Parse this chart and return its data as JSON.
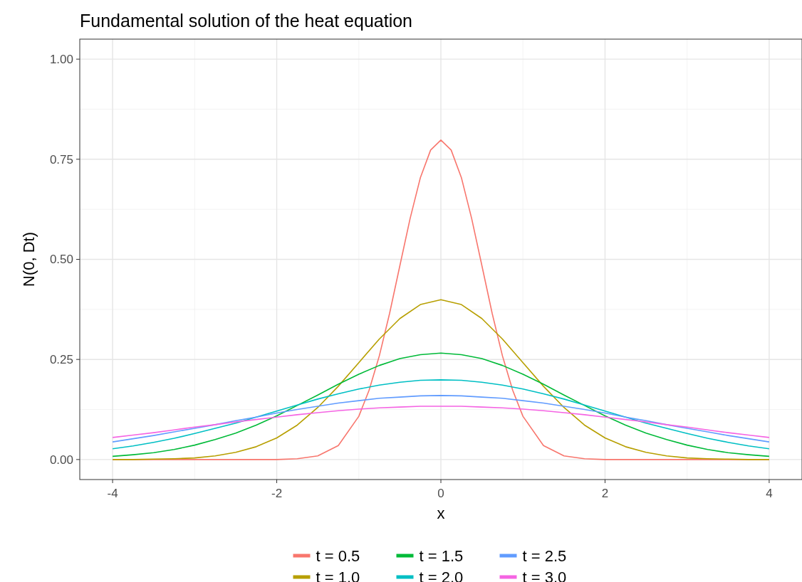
{
  "chart_data": {
    "type": "line",
    "title": "Fundamental solution of the heat equation",
    "xlabel": "x",
    "ylabel": "N(0, Dt)",
    "x": [
      -4,
      -3.75,
      -3.5,
      -3.25,
      -3,
      -2.75,
      -2.5,
      -2.25,
      -2,
      -1.75,
      -1.5,
      -1.25,
      -1,
      -0.75,
      -0.5,
      -0.25,
      0,
      0.25,
      0.5,
      0.75,
      1,
      1.25,
      1.5,
      1.75,
      2,
      2.25,
      2.5,
      2.75,
      3,
      3.25,
      3.5,
      3.75,
      4
    ],
    "xlim": [
      -4.4,
      4.4
    ],
    "xticks": [
      -4,
      -2,
      0,
      2,
      4
    ],
    "ylim": [
      -0.05,
      1.05
    ],
    "yticks": [
      {
        "value": 0,
        "label": "0.00"
      },
      {
        "value": 0.25,
        "label": "0.25"
      },
      {
        "value": 0.5,
        "label": "0.50"
      },
      {
        "value": 0.75,
        "label": "0.75"
      },
      {
        "value": 1,
        "label": "1.00"
      }
    ],
    "grid": true,
    "legend": "bottom",
    "line_style": "solid",
    "marker": "none",
    "series": [
      {
        "name": "t = 0.5",
        "color": "#f8766d",
        "x": [
          -4,
          -3,
          -2.5,
          -2,
          -1.75,
          -1.5,
          -1.25,
          -1,
          -0.875,
          -0.75,
          -0.625,
          -0.5,
          -0.375,
          -0.25,
          -0.125,
          0,
          0.125,
          0.25,
          0.375,
          0.5,
          0.625,
          0.75,
          0.875,
          1,
          1.25,
          1.5,
          1.75,
          2,
          2.5,
          3,
          4
        ],
        "values": [
          0,
          0,
          0,
          0,
          0.002,
          0.009,
          0.035,
          0.108,
          0.173,
          0.259,
          0.365,
          0.484,
          0.602,
          0.704,
          0.773,
          0.798,
          0.773,
          0.704,
          0.602,
          0.484,
          0.365,
          0.259,
          0.173,
          0.108,
          0.035,
          0.009,
          0.002,
          0,
          0,
          0,
          0
        ]
      },
      {
        "name": "t = 1.0",
        "color": "#b79f00",
        "values": [
          0,
          0,
          0.001,
          0.002,
          0.004,
          0.009,
          0.018,
          0.032,
          0.054,
          0.086,
          0.13,
          0.183,
          0.242,
          0.301,
          0.352,
          0.387,
          0.399,
          0.387,
          0.352,
          0.301,
          0.242,
          0.183,
          0.13,
          0.086,
          0.054,
          0.032,
          0.018,
          0.009,
          0.004,
          0.002,
          0.001,
          0,
          0
        ]
      },
      {
        "name": "t = 1.5",
        "color": "#00ba38",
        "values": [
          0.008,
          0.012,
          0.017,
          0.025,
          0.036,
          0.05,
          0.066,
          0.086,
          0.109,
          0.135,
          0.161,
          0.188,
          0.213,
          0.235,
          0.252,
          0.262,
          0.266,
          0.262,
          0.252,
          0.235,
          0.213,
          0.188,
          0.161,
          0.135,
          0.109,
          0.086,
          0.066,
          0.05,
          0.036,
          0.025,
          0.017,
          0.012,
          0.008
        ]
      },
      {
        "name": "t = 2.0",
        "color": "#00bfc4",
        "values": [
          0.027,
          0.034,
          0.043,
          0.053,
          0.065,
          0.078,
          0.091,
          0.106,
          0.121,
          0.136,
          0.151,
          0.164,
          0.176,
          0.186,
          0.193,
          0.198,
          0.199,
          0.198,
          0.193,
          0.186,
          0.176,
          0.164,
          0.151,
          0.136,
          0.121,
          0.106,
          0.091,
          0.078,
          0.065,
          0.053,
          0.043,
          0.034,
          0.027
        ]
      },
      {
        "name": "t = 2.5",
        "color": "#619cff",
        "values": [
          0.044,
          0.052,
          0.06,
          0.069,
          0.078,
          0.087,
          0.097,
          0.106,
          0.116,
          0.125,
          0.133,
          0.141,
          0.147,
          0.153,
          0.156,
          0.159,
          0.16,
          0.159,
          0.156,
          0.153,
          0.147,
          0.141,
          0.133,
          0.125,
          0.116,
          0.106,
          0.097,
          0.087,
          0.078,
          0.069,
          0.06,
          0.052,
          0.044
        ]
      },
      {
        "name": "t = 3.0",
        "color": "#f564e3",
        "values": [
          0.055,
          0.061,
          0.067,
          0.074,
          0.081,
          0.087,
          0.094,
          0.1,
          0.106,
          0.112,
          0.117,
          0.122,
          0.126,
          0.129,
          0.131,
          0.133,
          0.133,
          0.133,
          0.131,
          0.129,
          0.126,
          0.122,
          0.117,
          0.112,
          0.106,
          0.1,
          0.094,
          0.087,
          0.081,
          0.074,
          0.067,
          0.061,
          0.055
        ]
      }
    ]
  }
}
